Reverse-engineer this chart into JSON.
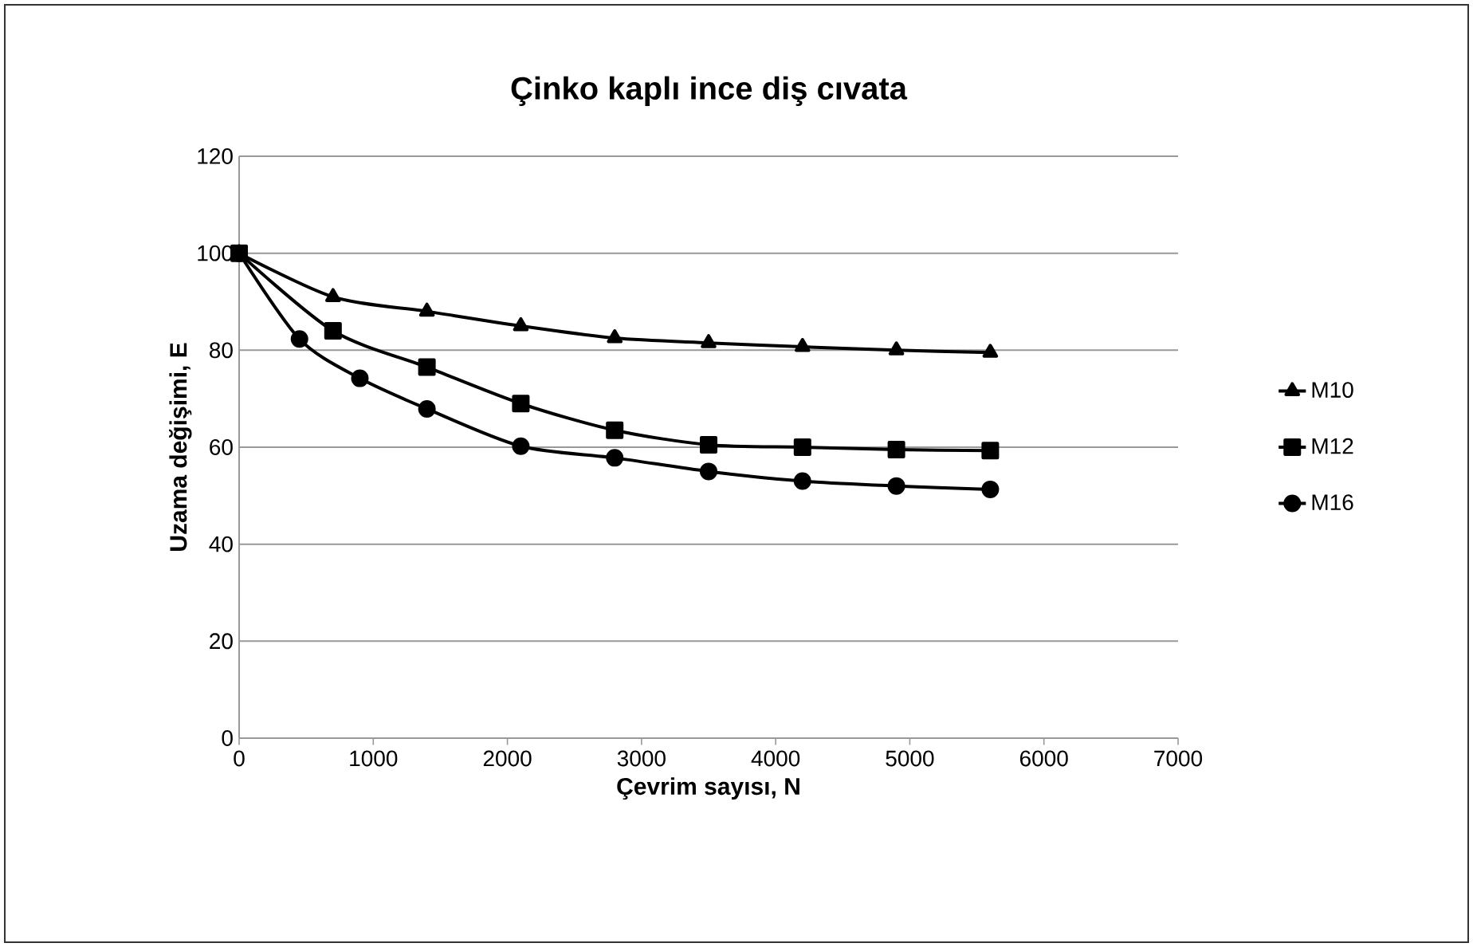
{
  "chart_data": {
    "type": "line",
    "title": "Çinko kaplı ince diş cıvata",
    "xlabel": "Çevrim sayısı, N",
    "ylabel": "Uzama değişimi, E",
    "xlim": [
      0,
      7000
    ],
    "xticks": [
      0,
      1000,
      2000,
      3000,
      4000,
      5000,
      6000,
      7000
    ],
    "ylim": [
      0,
      120
    ],
    "yticks": [
      0,
      20,
      40,
      60,
      80,
      100,
      120
    ],
    "grid": "y",
    "legend": "right",
    "series": [
      {
        "name": "M10",
        "color": "#000000",
        "marker": "triangle",
        "x": [
          0,
          700,
          1400,
          2100,
          2800,
          3500,
          4200,
          4900,
          5600
        ],
        "values": [
          100,
          91,
          88,
          85,
          82.5,
          81.5,
          80.7,
          80,
          79.5
        ]
      },
      {
        "name": "M12",
        "color": "#000000",
        "marker": "square",
        "x": [
          0,
          700,
          1400,
          2100,
          2800,
          3500,
          4200,
          4900,
          5600
        ],
        "values": [
          100,
          84,
          76.5,
          69,
          63.5,
          60.5,
          60,
          59.5,
          59.3
        ]
      },
      {
        "name": "M16",
        "color": "#000000",
        "marker": "circle",
        "x": [
          0,
          450,
          900,
          1400,
          2100,
          2800,
          3500,
          4200,
          4900,
          5600
        ],
        "values": [
          100,
          82.3,
          74.2,
          67.9,
          60.2,
          57.8,
          55,
          53,
          52,
          51.3
        ]
      }
    ]
  }
}
